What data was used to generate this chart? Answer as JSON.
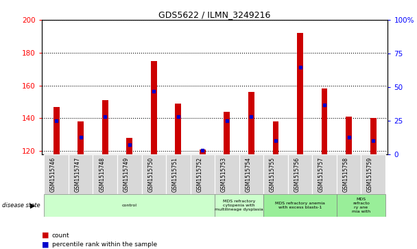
{
  "title": "GDS5622 / ILMN_3249216",
  "categories": [
    "GSM1515746",
    "GSM1515747",
    "GSM1515748",
    "GSM1515749",
    "GSM1515750",
    "GSM1515751",
    "GSM1515752",
    "GSM1515753",
    "GSM1515754",
    "GSM1515755",
    "GSM1515756",
    "GSM1515757",
    "GSM1515758",
    "GSM1515759"
  ],
  "count_values": [
    147,
    138,
    151,
    128,
    175,
    149,
    121,
    144,
    156,
    138,
    192,
    158,
    141,
    140
  ],
  "percentile_values": [
    25,
    13,
    28,
    7,
    47,
    28,
    3,
    25,
    28,
    10,
    65,
    37,
    13,
    10
  ],
  "ylim_left": [
    118,
    200
  ],
  "ylim_right": [
    0,
    100
  ],
  "yticks_left": [
    120,
    140,
    160,
    180,
    200
  ],
  "yticks_right": [
    0,
    25,
    50,
    75,
    100
  ],
  "bar_color": "#cc0000",
  "dot_color": "#0000cc",
  "background_color": "#ffffff",
  "grid_color": "#000000",
  "disease_groups": [
    {
      "label": "control",
      "start": 0,
      "end": 6,
      "color": "#ccffcc"
    },
    {
      "label": "MDS refractory\ncytopenia with\nmultilineage dysplasia",
      "start": 7,
      "end": 8,
      "color": "#ccffcc"
    },
    {
      "label": "MDS refractory anemia\nwith excess blasts-1",
      "start": 9,
      "end": 11,
      "color": "#99ee99"
    },
    {
      "label": "MDS\nrefracto\nry ane\nmia with",
      "start": 12,
      "end": 13,
      "color": "#99ee99"
    }
  ]
}
